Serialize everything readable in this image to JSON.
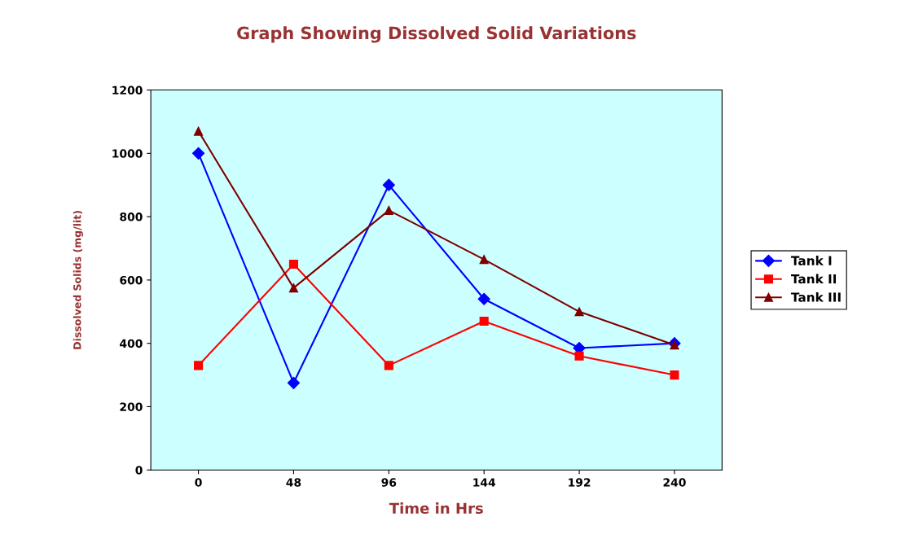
{
  "chart_data": {
    "type": "line",
    "title": "Graph Showing Dissolved Solid Variations",
    "xlabel": "Time in Hrs",
    "ylabel": "Dissolved Solids (mg/lit)",
    "categories": [
      "0",
      "48",
      "96",
      "144",
      "192",
      "240"
    ],
    "series": [
      {
        "name": "Tank I",
        "color": "#0000ff",
        "marker": "diamond",
        "values": [
          1000,
          275,
          900,
          540,
          385,
          400
        ]
      },
      {
        "name": "Tank II",
        "color": "#ff0000",
        "marker": "square",
        "values": [
          330,
          650,
          330,
          470,
          360,
          300
        ]
      },
      {
        "name": "Tank III",
        "color": "#800000",
        "marker": "triangle",
        "values": [
          1070,
          575,
          820,
          665,
          500,
          395
        ]
      }
    ],
    "ylim": [
      0,
      1200
    ],
    "yticks": [
      0,
      200,
      400,
      600,
      800,
      1000,
      1200
    ],
    "grid": false,
    "legend": "right",
    "line_style": "solid"
  }
}
